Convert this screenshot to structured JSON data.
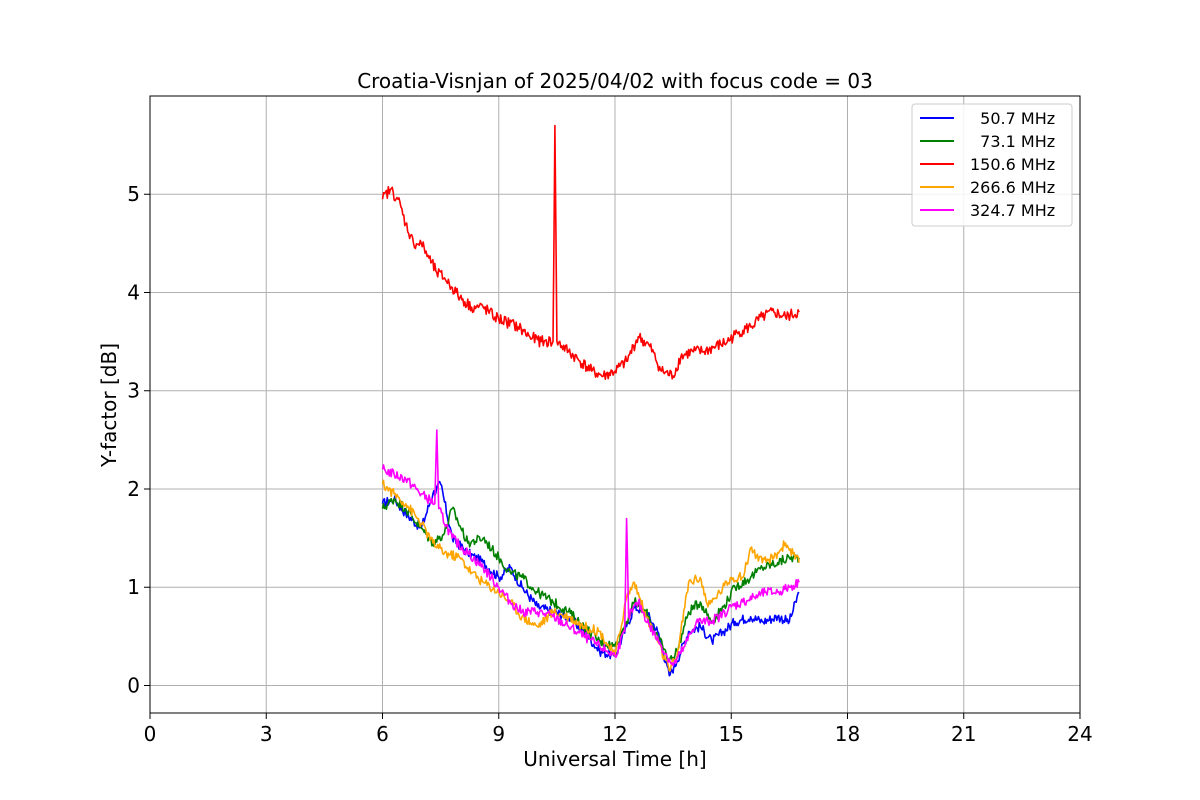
{
  "chart_data": {
    "type": "line",
    "title": "Croatia-Visnjan of 2025/04/02 with focus code = 03",
    "xlabel": "Universal Time [h]",
    "ylabel": "Y-factor [dB]",
    "xlim": [
      0,
      24
    ],
    "ylim": [
      -0.28,
      6.0
    ],
    "xticks": [
      0,
      3,
      6,
      9,
      12,
      15,
      18,
      21,
      24
    ],
    "yticks": [
      0,
      1,
      2,
      3,
      4,
      5
    ],
    "grid": true,
    "legend_position": "top-right",
    "series": [
      {
        "name": "  50.7 MHz",
        "color": "#0000ff",
        "x": [
          6.0,
          6.3,
          6.6,
          7.0,
          7.3,
          7.5,
          7.8,
          8.2,
          8.6,
          9.0,
          9.3,
          9.6,
          10.0,
          10.4,
          10.8,
          11.2,
          11.6,
          12.0,
          12.3,
          12.5,
          12.8,
          13.1,
          13.4,
          13.6,
          13.9,
          14.2,
          14.5,
          14.8,
          15.1,
          15.5,
          15.8,
          16.2,
          16.5,
          16.75
        ],
        "y": [
          1.85,
          1.9,
          1.75,
          1.6,
          1.95,
          2.05,
          1.5,
          1.35,
          1.25,
          1.1,
          1.2,
          1.0,
          0.8,
          0.75,
          0.7,
          0.55,
          0.35,
          0.3,
          0.6,
          0.8,
          0.75,
          0.55,
          0.1,
          0.25,
          0.55,
          0.6,
          0.45,
          0.55,
          0.65,
          0.7,
          0.65,
          0.7,
          0.65,
          0.95
        ]
      },
      {
        "name": "  73.1 MHz",
        "color": "#008000",
        "x": [
          6.0,
          6.3,
          6.6,
          7.0,
          7.3,
          7.6,
          7.8,
          8.2,
          8.6,
          9.0,
          9.3,
          9.6,
          10.0,
          10.4,
          10.8,
          11.2,
          11.6,
          12.0,
          12.3,
          12.5,
          12.8,
          13.1,
          13.4,
          13.6,
          13.9,
          14.2,
          14.5,
          14.8,
          15.1,
          15.5,
          15.8,
          16.2,
          16.5,
          16.75
        ],
        "y": [
          1.8,
          1.9,
          1.8,
          1.6,
          1.45,
          1.55,
          1.8,
          1.45,
          1.5,
          1.3,
          1.15,
          1.1,
          0.95,
          0.85,
          0.75,
          0.6,
          0.45,
          0.4,
          0.65,
          0.85,
          0.75,
          0.5,
          0.25,
          0.35,
          0.75,
          0.85,
          0.65,
          0.8,
          1.0,
          1.1,
          1.2,
          1.25,
          1.3,
          1.3
        ]
      },
      {
        "name": "150.6 MHz",
        "color": "#ff0000",
        "x": [
          6.0,
          6.2,
          6.4,
          6.6,
          6.8,
          7.0,
          7.2,
          7.4,
          7.6,
          7.8,
          8.0,
          8.3,
          8.6,
          8.9,
          9.2,
          9.5,
          9.8,
          10.1,
          10.4,
          10.45,
          10.5,
          10.8,
          11.1,
          11.4,
          11.7,
          12.0,
          12.3,
          12.6,
          12.9,
          13.2,
          13.5,
          13.7,
          14.0,
          14.3,
          14.6,
          14.9,
          15.2,
          15.5,
          15.8,
          16.1,
          16.4,
          16.75
        ],
        "y": [
          4.95,
          5.05,
          4.95,
          4.7,
          4.5,
          4.5,
          4.35,
          4.2,
          4.15,
          4.05,
          3.95,
          3.85,
          3.85,
          3.75,
          3.7,
          3.65,
          3.55,
          3.5,
          3.5,
          5.7,
          3.5,
          3.4,
          3.3,
          3.2,
          3.15,
          3.2,
          3.3,
          3.55,
          3.45,
          3.2,
          3.15,
          3.35,
          3.4,
          3.4,
          3.45,
          3.5,
          3.6,
          3.65,
          3.75,
          3.8,
          3.75,
          3.8
        ]
      },
      {
        "name": "266.6 MHz",
        "color": "#ffa500",
        "x": [
          6.0,
          6.3,
          6.6,
          7.0,
          7.3,
          7.6,
          8.0,
          8.3,
          8.6,
          9.0,
          9.3,
          9.6,
          10.0,
          10.4,
          10.8,
          11.2,
          11.6,
          12.0,
          12.3,
          12.5,
          12.8,
          13.1,
          13.4,
          13.6,
          13.9,
          14.2,
          14.4,
          14.7,
          15.0,
          15.3,
          15.5,
          15.8,
          16.1,
          16.4,
          16.75
        ],
        "y": [
          2.05,
          1.95,
          1.85,
          1.65,
          1.45,
          1.35,
          1.3,
          1.15,
          1.05,
          0.95,
          0.85,
          0.7,
          0.6,
          0.75,
          0.7,
          0.6,
          0.55,
          0.3,
          0.9,
          1.05,
          0.7,
          0.45,
          0.15,
          0.3,
          1.05,
          1.1,
          0.8,
          0.95,
          1.1,
          1.1,
          1.4,
          1.25,
          1.3,
          1.45,
          1.25
        ]
      },
      {
        "name": "324.7 MHz",
        "color": "#ff00ff",
        "x": [
          6.0,
          6.3,
          6.6,
          7.0,
          7.35,
          7.4,
          7.45,
          7.8,
          8.2,
          8.6,
          9.0,
          9.3,
          9.6,
          10.0,
          10.4,
          10.8,
          11.2,
          11.6,
          12.0,
          12.25,
          12.3,
          12.35,
          12.6,
          12.9,
          13.2,
          13.5,
          13.8,
          14.1,
          14.4,
          14.7,
          15.0,
          15.3,
          15.6,
          15.9,
          16.2,
          16.5,
          16.75
        ],
        "y": [
          2.2,
          2.15,
          2.1,
          1.95,
          1.85,
          2.6,
          1.8,
          1.5,
          1.35,
          1.2,
          1.0,
          0.85,
          0.75,
          0.75,
          0.7,
          0.6,
          0.5,
          0.4,
          0.3,
          0.55,
          1.7,
          0.7,
          0.85,
          0.6,
          0.4,
          0.2,
          0.4,
          0.65,
          0.65,
          0.7,
          0.8,
          0.85,
          0.9,
          0.95,
          0.95,
          1.0,
          1.05
        ]
      }
    ]
  }
}
